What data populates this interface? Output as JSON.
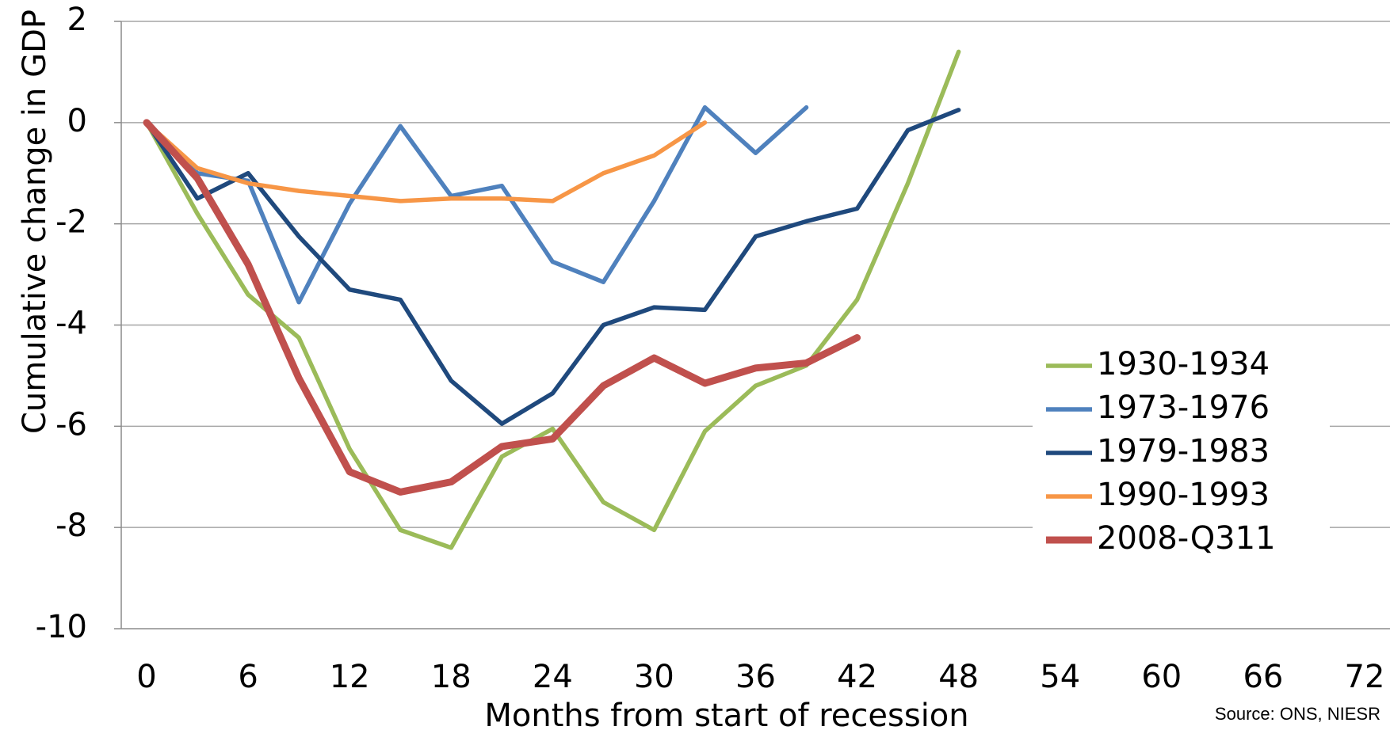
{
  "chart_data": {
    "type": "line",
    "y_label": "Cumulative change in GDP",
    "x_label": "Months from start of recession",
    "source": "Source: ONS, NIESR",
    "x": [
      0,
      3,
      6,
      9,
      12,
      15,
      18,
      21,
      24,
      27,
      30,
      33,
      36,
      39,
      42,
      45,
      48
    ],
    "series": [
      {
        "name": "1930-1934",
        "color": "#9bbb59",
        "values": [
          0,
          -1.8,
          -3.4,
          -4.25,
          -6.45,
          -8.05,
          -8.4,
          -6.6,
          -6.05,
          -7.5,
          -8.05,
          -6.1,
          -5.2,
          -4.8,
          -3.5,
          -1.2,
          1.4
        ]
      },
      {
        "name": "1973-1976",
        "color": "#4f81bd",
        "values": [
          0,
          -1.0,
          -1.15,
          -3.55,
          -1.6,
          -0.07,
          -1.45,
          -1.25,
          -2.75,
          -3.15,
          -1.55,
          0.3,
          -0.6,
          0.3,
          null,
          null,
          null
        ]
      },
      {
        "name": "1979-1983",
        "color": "#1f497d",
        "values": [
          0,
          -1.5,
          -1.0,
          -2.25,
          -3.3,
          -3.5,
          -5.1,
          -5.95,
          -5.35,
          -4.0,
          -3.65,
          -3.7,
          -2.25,
          -1.95,
          -1.7,
          -0.15,
          0.25
        ]
      },
      {
        "name": "1990-1993",
        "color": "#f79646",
        "values": [
          0,
          -0.9,
          -1.2,
          -1.35,
          -1.45,
          -1.55,
          -1.5,
          -1.5,
          -1.55,
          -1.0,
          -0.65,
          0,
          null,
          null,
          null,
          null,
          null
        ]
      },
      {
        "name": "2008-Q311",
        "color": "#c0504d",
        "values": [
          0,
          -1.1,
          -2.8,
          -5.05,
          -6.9,
          -7.3,
          -7.1,
          -6.4,
          -6.25,
          -5.2,
          -4.65,
          -5.15,
          -4.85,
          -4.75,
          -4.25,
          null,
          null
        ]
      }
    ],
    "xlim": [
      -1.5,
      73.5
    ],
    "xticks": [
      0,
      6,
      12,
      18,
      24,
      30,
      36,
      42,
      48,
      54,
      60,
      66,
      72
    ],
    "ylim": [
      -10,
      2
    ],
    "yticks": [
      -10,
      -8,
      -6,
      -4,
      -2,
      0,
      2
    ],
    "grid": true,
    "legend": "right"
  }
}
